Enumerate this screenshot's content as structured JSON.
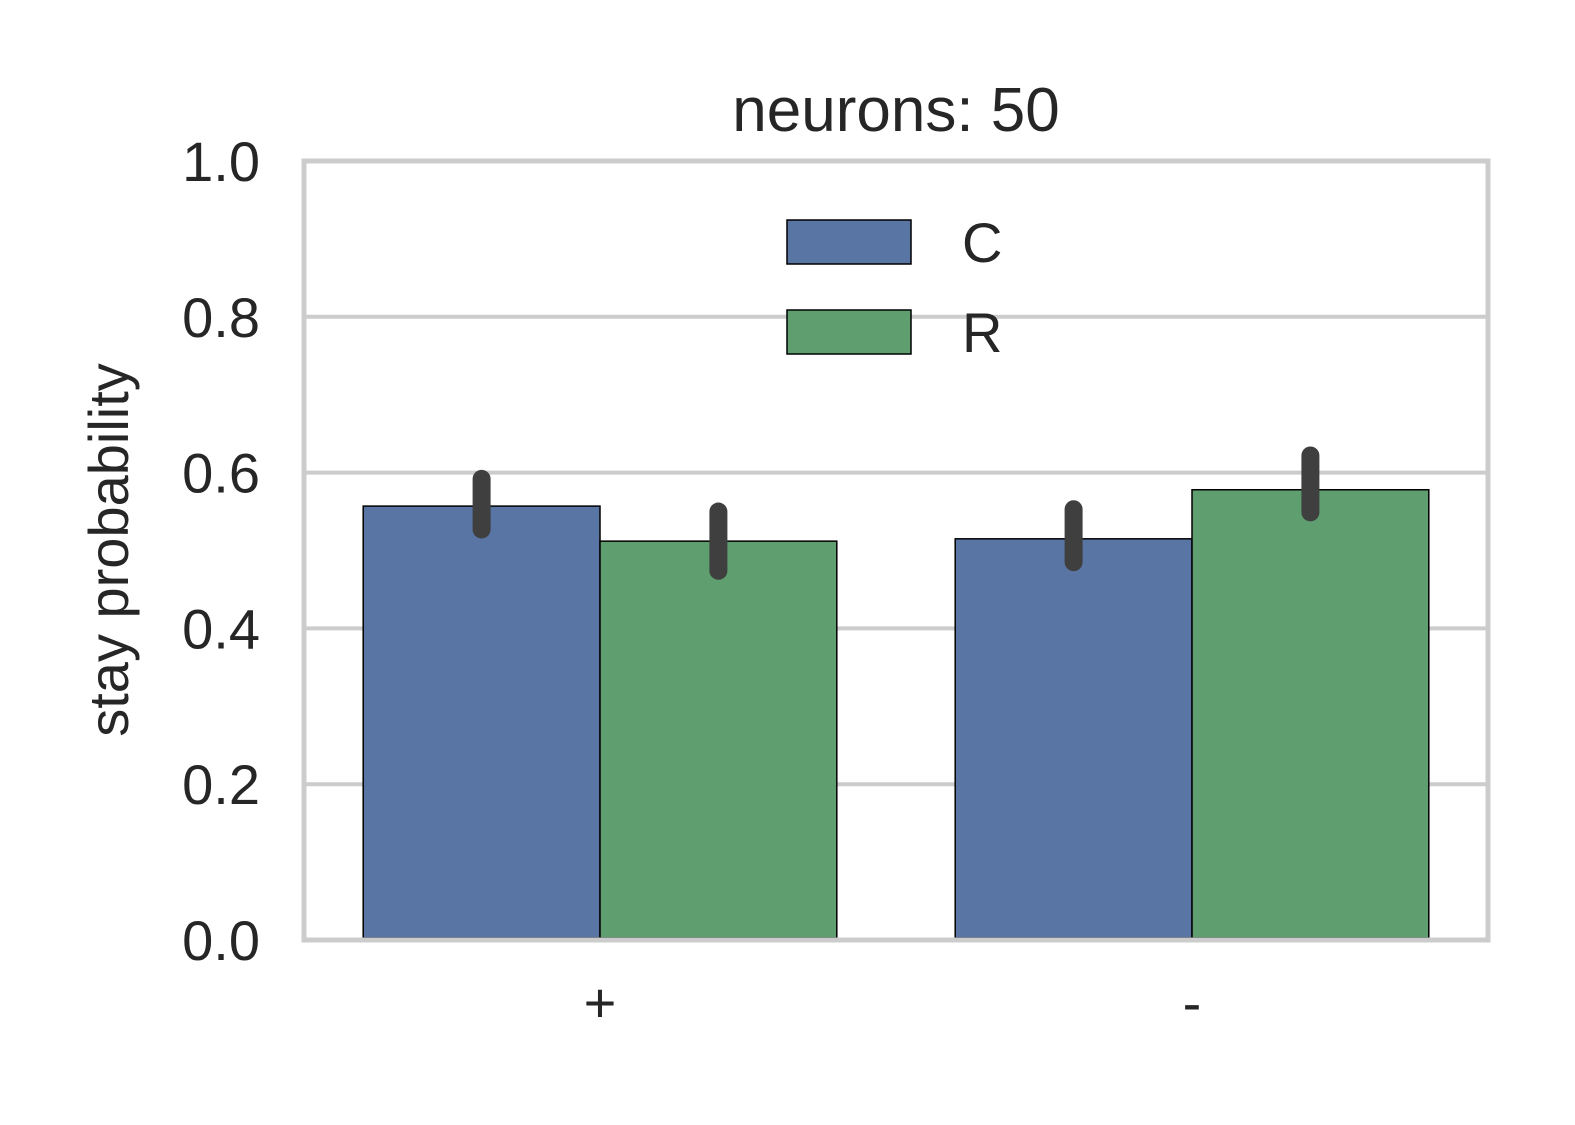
{
  "chart_data": {
    "type": "bar",
    "title": "neurons: 50",
    "xlabel": "",
    "ylabel": "stay probability",
    "ylim": [
      0,
      1.0
    ],
    "yticks": [
      "0.0",
      "0.2",
      "0.4",
      "0.6",
      "0.8",
      "1.0"
    ],
    "categories": [
      "+",
      "-"
    ],
    "grid": true,
    "legend_position": "top-center",
    "series": [
      {
        "name": "C",
        "color": "#5975a4",
        "values": [
          0.557,
          0.515
        ],
        "err_low": [
          0.527,
          0.485
        ],
        "err_high": [
          0.592,
          0.553
        ]
      },
      {
        "name": "R",
        "color": "#5f9e6e",
        "values": [
          0.512,
          0.578
        ],
        "err_low": [
          0.474,
          0.549
        ],
        "err_high": [
          0.55,
          0.622
        ]
      }
    ]
  }
}
